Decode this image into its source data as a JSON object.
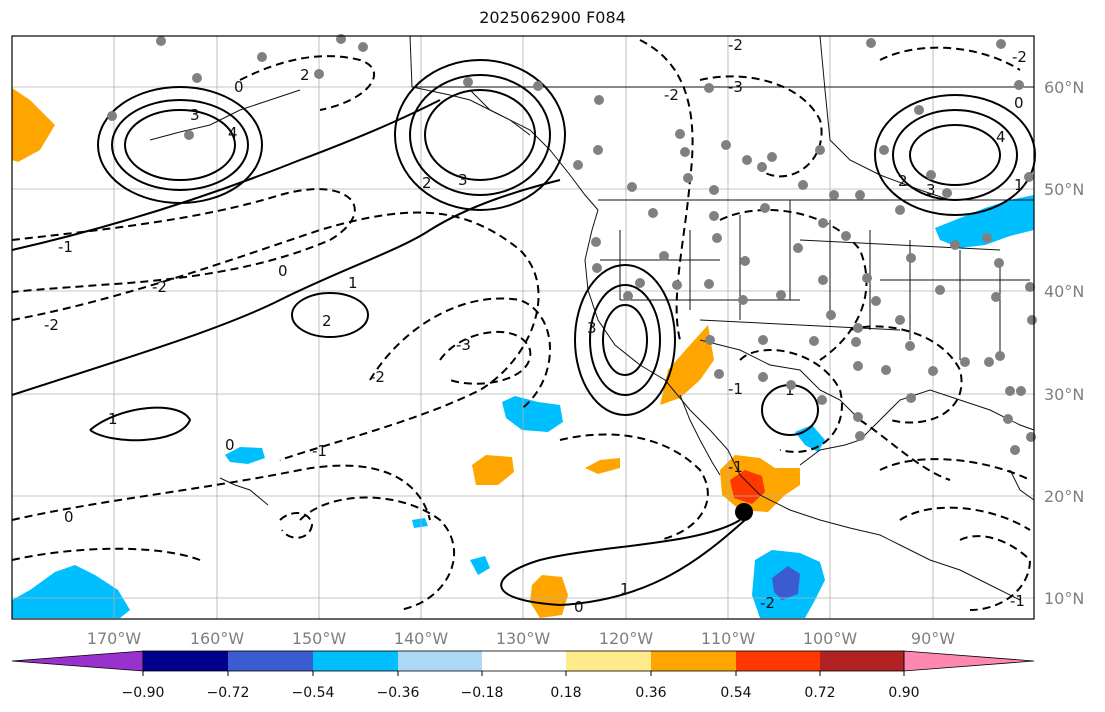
{
  "title": "2025062900 F084",
  "map": {
    "lon_labels": [
      "170°W",
      "160°W",
      "150°W",
      "140°W",
      "130°W",
      "120°W",
      "110°W",
      "100°W",
      "90°W"
    ],
    "lat_labels": [
      "60°N",
      "50°N",
      "40°N",
      "30°N",
      "20°N",
      "10°N"
    ],
    "contour_labels": [
      "3",
      "4",
      "0",
      "2",
      "3",
      "-2",
      "-2",
      "-1",
      "-2",
      "-3",
      "1",
      "2",
      "3",
      "0",
      "1",
      "1",
      "0",
      "-1",
      "0",
      "0",
      "-1",
      "1",
      "-2",
      "2",
      "-1",
      "-2",
      "-3",
      "-2",
      "3",
      "2",
      "4",
      "1",
      "-2",
      "0",
      "-1"
    ],
    "colors": {
      "positive_fill_1": "#ffa500",
      "positive_fill_2": "#ff3800",
      "negative_fill_1": "#00bfff",
      "negative_fill_2": "#3b5cd0",
      "station_marker": "#808080",
      "location_marker": "#000000"
    }
  },
  "colorbar": {
    "tick_labels": [
      "−0.90",
      "−0.72",
      "−0.54",
      "−0.36",
      "−0.18",
      "0.18",
      "0.36",
      "0.54",
      "0.72",
      "0.90"
    ],
    "colors": [
      "#9932cc",
      "#00008b",
      "#3b5cd0",
      "#00bfff",
      "#add8f5",
      "#ffffff",
      "#ffeb8a",
      "#ffa500",
      "#ff3800",
      "#b22222",
      "#ff88b0"
    ]
  }
}
